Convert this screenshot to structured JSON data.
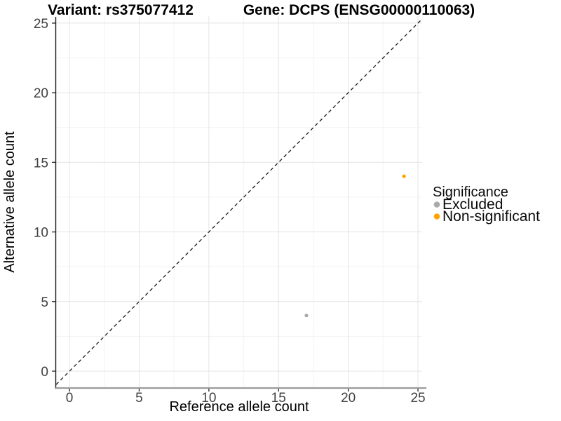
{
  "chart_data": {
    "type": "scatter",
    "titles": {
      "left": "Variant: rs375077412",
      "right": "Gene: DCPS (ENSG00000110063)"
    },
    "xlabel": "Reference allele count",
    "ylabel": "Alternative allele count",
    "x_ticks": [
      0,
      5,
      10,
      15,
      20,
      25
    ],
    "y_ticks": [
      0,
      5,
      10,
      15,
      20,
      25
    ],
    "minor_ticks": [
      2.5,
      7.5,
      12.5,
      17.5,
      22.5
    ],
    "xlim": [
      -0.96,
      25.3
    ],
    "ylim": [
      -1.16,
      25.5
    ],
    "identity_line": {
      "style": "dashed",
      "equation": "y = x"
    },
    "grid": {
      "major": true,
      "minor": true
    },
    "legend": {
      "title": "Significance",
      "position": "right",
      "items": [
        {
          "label": "Excluded",
          "color": "#A9A9A9"
        },
        {
          "label": "Non-significant",
          "color": "#FFA500"
        }
      ]
    },
    "series": [
      {
        "name": "Excluded",
        "color": "#A9A9A9",
        "points": [
          [
            17,
            4
          ]
        ]
      },
      {
        "name": "Non-significant",
        "color": "#FFA500",
        "points": [
          [
            24,
            14
          ]
        ]
      }
    ]
  },
  "colors": {
    "background": "#ffffff",
    "grid_major": "#e4e4e4",
    "grid_minor": "#f3f3f3",
    "x_axis_line": "#9b9b9b",
    "y_axis_line": "#1a1a1a",
    "tick_mark": "#333333",
    "tick_label": "#404040",
    "identity_line": "#1a1a1a"
  }
}
